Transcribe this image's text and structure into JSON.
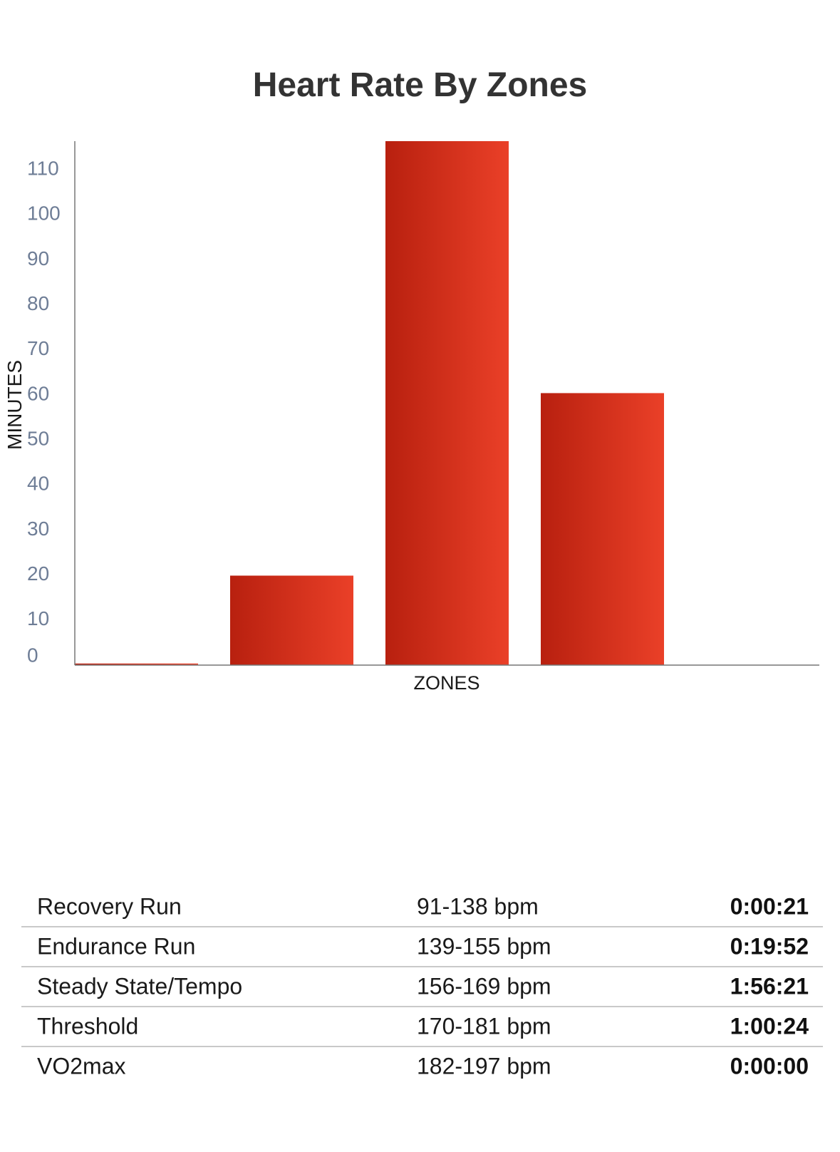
{
  "chart_data": {
    "type": "bar",
    "title": "Heart Rate By Zones",
    "xlabel": "ZONES",
    "ylabel": "MINUTES",
    "ylim": [
      0,
      116.35
    ],
    "yticks": [
      0,
      10,
      20,
      30,
      40,
      50,
      60,
      70,
      80,
      90,
      100,
      110
    ],
    "categories": [
      "Recovery Run",
      "Endurance Run",
      "Steady State/Tempo",
      "Threshold",
      "VO2max"
    ],
    "values": [
      0.35,
      19.87,
      116.35,
      60.4,
      0
    ],
    "bar_color_start": "#b8200f",
    "bar_color_end": "#ea4028",
    "axis_color": "#777777",
    "tick_color": "#6e7d96",
    "grid": false
  },
  "zones": [
    {
      "name": "Recovery Run",
      "range": "91-138 bpm",
      "time": "0:00:21"
    },
    {
      "name": "Endurance Run",
      "range": "139-155 bpm",
      "time": "0:19:52"
    },
    {
      "name": "Steady State/Tempo",
      "range": "156-169 bpm",
      "time": "1:56:21"
    },
    {
      "name": "Threshold",
      "range": "170-181 bpm",
      "time": "1:00:24"
    },
    {
      "name": "VO2max",
      "range": "182-197 bpm",
      "time": "0:00:00"
    }
  ]
}
